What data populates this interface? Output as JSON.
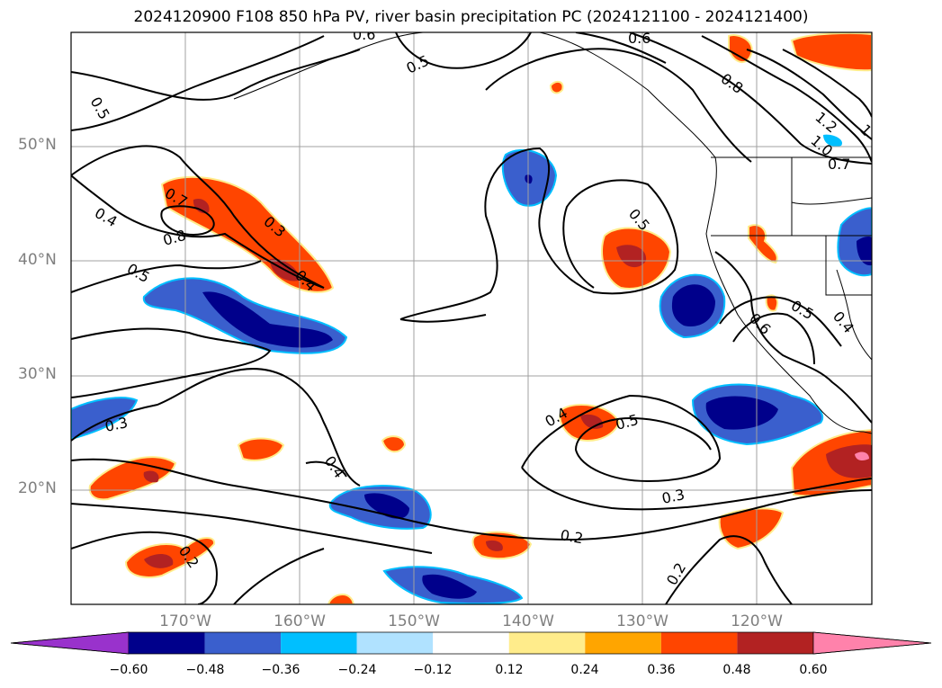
{
  "title": "2024120900 F108 850 hPa PV, river basin precipitation PC (2024121100 - 2024121400)",
  "map": {
    "projection": "cylindrical",
    "lon_range": [
      -180,
      -110
    ],
    "lat_range": [
      10,
      60
    ],
    "grid": true,
    "lat_labels": [
      "50°N",
      "40°N",
      "30°N",
      "20°N"
    ],
    "lon_labels": [
      "170°W",
      "160°W",
      "150°W",
      "140°W",
      "130°W",
      "120°W"
    ],
    "pv_contour_labels": [
      "0.5",
      "0.6",
      "0.5",
      "0.6",
      "0.8",
      "1.2",
      "1.0",
      "1",
      "0.7",
      "0.7",
      "0.8",
      "0.3",
      "0.4",
      "0.5",
      "0.5",
      "0.4",
      "0.6",
      "0.5",
      "0.4",
      "0.3",
      "0.4",
      "0.5",
      "0.4",
      "0.3",
      "0.2",
      "0.2",
      "0.2"
    ]
  },
  "colorbar": {
    "ticks": [
      "−0.60",
      "−0.48",
      "−0.36",
      "−0.24",
      "−0.12",
      "0.12",
      "0.24",
      "0.36",
      "0.48",
      "0.60"
    ],
    "colors": [
      "#9932cc",
      "#00008b",
      "#3a5fcd",
      "#00bfff",
      "#b0e2ff",
      "#ffffff",
      "#ffec8b",
      "#ffa500",
      "#ff4500",
      "#b22222",
      "#ff82ab"
    ]
  }
}
